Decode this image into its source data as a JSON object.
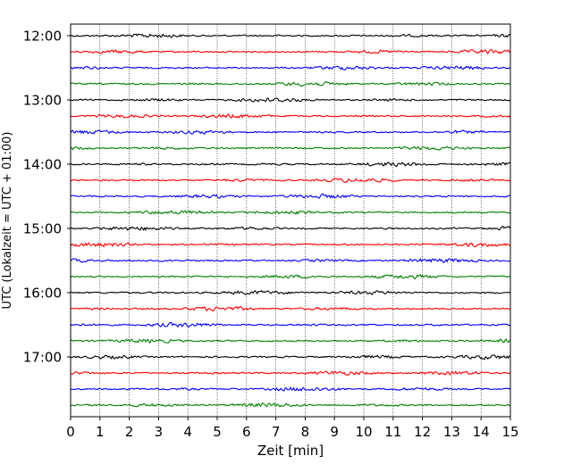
{
  "chart_data": {
    "type": "line",
    "xlabel": "Zeit  [min]",
    "ylabel": "UTC (Lokalzeit = UTC + 01:00)",
    "xlim": [
      0,
      15
    ],
    "xticks": [
      "0",
      "1",
      "2",
      "3",
      "4",
      "5",
      "6",
      "7",
      "8",
      "9",
      "10",
      "11",
      "12",
      "13",
      "14",
      "15"
    ],
    "ytick_labels": [
      "12:00",
      "13:00",
      "14:00",
      "15:00",
      "16:00",
      "17:00"
    ],
    "trace_start_times": [
      "12:00",
      "12:15",
      "12:30",
      "12:45",
      "13:00",
      "13:15",
      "13:30",
      "13:45",
      "14:00",
      "14:15",
      "14:30",
      "14:45",
      "15:00",
      "15:15",
      "15:30",
      "15:45",
      "16:00",
      "16:15",
      "16:30",
      "16:45",
      "17:00",
      "17:15",
      "17:30",
      "17:45"
    ],
    "trace_colors": [
      "#000000",
      "#ff0000",
      "#0000ff",
      "#008000"
    ],
    "grid": "vertical dotted at each minute"
  }
}
